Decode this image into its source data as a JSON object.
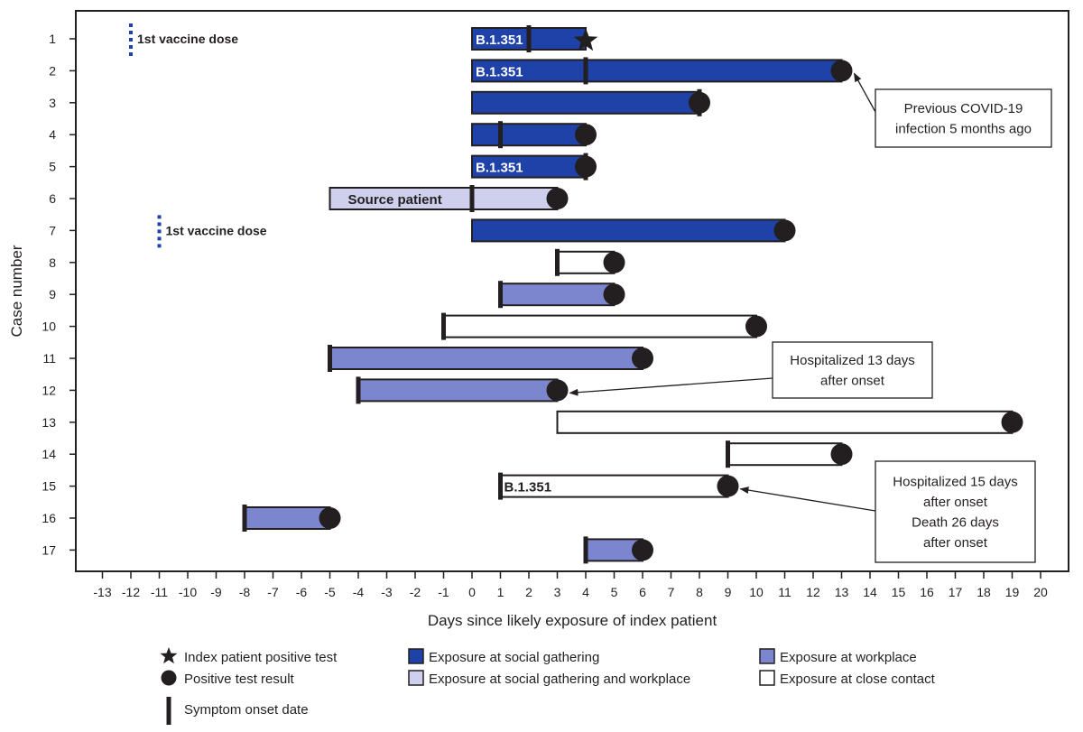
{
  "chart_data": {
    "type": "bar",
    "subtype": "timeline-gantt",
    "xlabel": "Days since likely exposure of index patient",
    "ylabel": "Case number",
    "xlim": [
      -14,
      21
    ],
    "x_ticks": [
      -13,
      -12,
      -11,
      -10,
      -9,
      -8,
      -7,
      -6,
      -5,
      -4,
      -3,
      -2,
      -1,
      0,
      1,
      2,
      3,
      4,
      5,
      6,
      7,
      8,
      9,
      10,
      11,
      12,
      13,
      14,
      15,
      16,
      17,
      18,
      19,
      20
    ],
    "categories": [
      "1",
      "2",
      "3",
      "4",
      "5",
      "6",
      "7",
      "8",
      "9",
      "10",
      "11",
      "12",
      "13",
      "14",
      "15",
      "16",
      "17"
    ],
    "colors": {
      "social": "#1e42a8",
      "social_workplace": "#cfd0ee",
      "workplace": "#7b86cf",
      "close": "#ffffff",
      "outline": "#231f20",
      "vaccine": "#1e42a8"
    },
    "cases": [
      {
        "case": 1,
        "start": 0,
        "end": 4,
        "exposure": "social",
        "onset": 2,
        "end_marker": "index-positive-test",
        "label": "B.1.351"
      },
      {
        "case": 2,
        "start": 0,
        "end": 13,
        "exposure": "social",
        "onset": 4,
        "end_marker": "positive-test",
        "label": "B.1.351"
      },
      {
        "case": 3,
        "start": 0,
        "end": 8,
        "exposure": "social",
        "onset": 8,
        "end_marker": "positive-test",
        "label": ""
      },
      {
        "case": 4,
        "start": 0,
        "end": 4,
        "exposure": "social",
        "onset": 1,
        "end_marker": "positive-test",
        "label": ""
      },
      {
        "case": 5,
        "start": 0,
        "end": 4,
        "exposure": "social",
        "onset": 4,
        "end_marker": "positive-test",
        "label": "B.1.351"
      },
      {
        "case": 6,
        "start": -5,
        "end": 3,
        "exposure": "social_workplace",
        "onset": 0,
        "end_marker": "positive-test",
        "label": "Source patient"
      },
      {
        "case": 7,
        "start": 0,
        "end": 11,
        "exposure": "social",
        "onset": null,
        "end_marker": "positive-test",
        "label": ""
      },
      {
        "case": 8,
        "start": 3,
        "end": 5,
        "exposure": "close",
        "onset": 3,
        "end_marker": "positive-test",
        "label": ""
      },
      {
        "case": 9,
        "start": 1,
        "end": 5,
        "exposure": "workplace",
        "onset": 1,
        "end_marker": "positive-test",
        "label": ""
      },
      {
        "case": 10,
        "start": -1,
        "end": 10,
        "exposure": "close",
        "onset": -1,
        "end_marker": "positive-test",
        "label": ""
      },
      {
        "case": 11,
        "start": -5,
        "end": 6,
        "exposure": "workplace",
        "onset": -5,
        "end_marker": "positive-test",
        "label": ""
      },
      {
        "case": 12,
        "start": -4,
        "end": 3,
        "exposure": "workplace",
        "onset": -4,
        "end_marker": "positive-test",
        "label": ""
      },
      {
        "case": 13,
        "start": 3,
        "end": 19,
        "exposure": "close",
        "onset": null,
        "end_marker": "positive-test",
        "label": ""
      },
      {
        "case": 14,
        "start": 9,
        "end": 13,
        "exposure": "close",
        "onset": 9,
        "end_marker": "positive-test",
        "label": ""
      },
      {
        "case": 15,
        "start": 1,
        "end": 9,
        "exposure": "close",
        "onset": 1,
        "end_marker": "positive-test",
        "label": "B.1.351"
      },
      {
        "case": 16,
        "start": -8,
        "end": -5,
        "exposure": "workplace",
        "onset": -8,
        "end_marker": "positive-test",
        "label": ""
      },
      {
        "case": 17,
        "start": 4,
        "end": 6,
        "exposure": "workplace",
        "onset": 4,
        "end_marker": "positive-test",
        "label": ""
      }
    ],
    "vaccine_doses": [
      {
        "case": 1,
        "day": -12,
        "label": "1st vaccine dose"
      },
      {
        "case": 7,
        "day": -11,
        "label": "1st vaccine dose"
      }
    ],
    "annotations": [
      {
        "lines": [
          "Previous COVID-19",
          "infection 5 months ago"
        ],
        "target_case": 2,
        "target_day": 13
      },
      {
        "lines": [
          "Hospitalized 13 days",
          "after onset"
        ],
        "target_case": 12,
        "target_day": 3
      },
      {
        "lines": [
          "Hospitalized 15 days",
          "after onset",
          "Death 26 days",
          "after onset"
        ],
        "target_case": 15,
        "target_day": 9
      }
    ],
    "legend": [
      {
        "key": "index-positive-test",
        "label": "Index patient positive test"
      },
      {
        "key": "positive-test",
        "label": "Positive test result"
      },
      {
        "key": "symptom-onset",
        "label": "Symptom onset date"
      },
      {
        "key": "social",
        "label": "Exposure at social gathering"
      },
      {
        "key": "social_workplace",
        "label": "Exposure at social gathering and workplace"
      },
      {
        "key": "workplace",
        "label": "Exposure at workplace"
      },
      {
        "key": "close",
        "label": "Exposure at close contact"
      }
    ]
  }
}
